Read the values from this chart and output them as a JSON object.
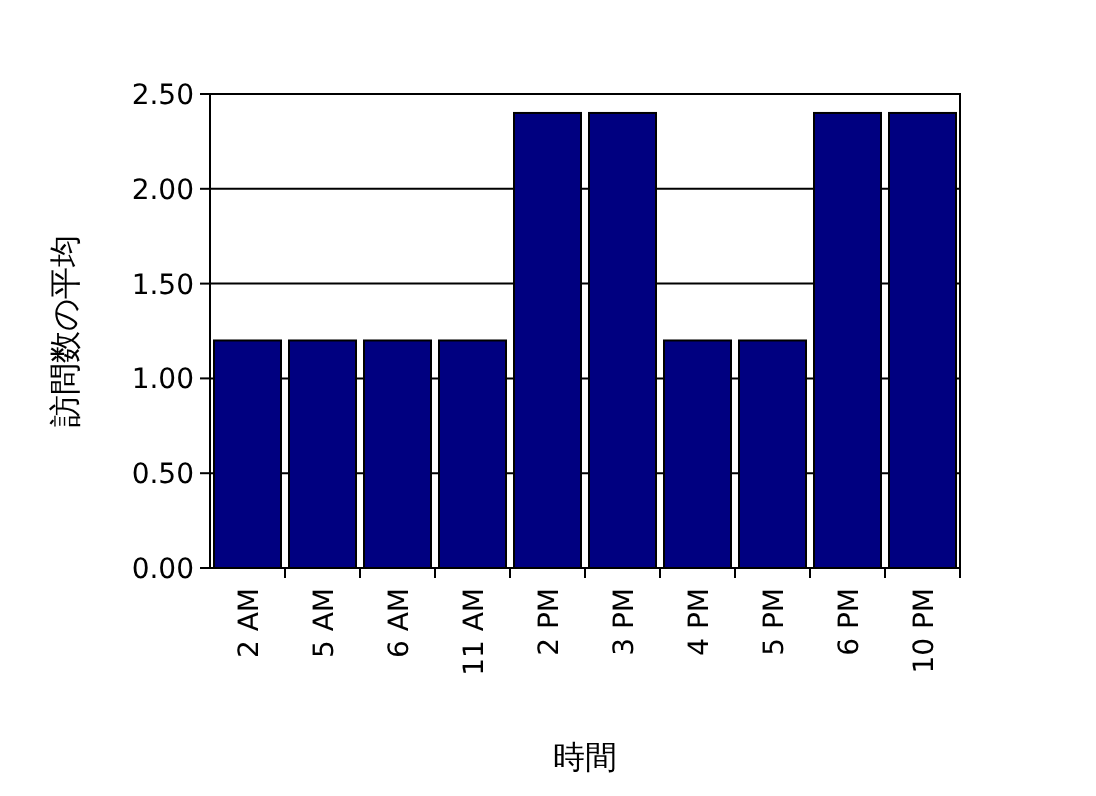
{
  "chart_data": {
    "type": "bar",
    "xlabel": "時間",
    "ylabel": "訪問数の平均",
    "categories": [
      "2 AM",
      "5 AM",
      "6 AM",
      "11 AM",
      "2 PM",
      "3 PM",
      "4 PM",
      "5 PM",
      "6 PM",
      "10 PM"
    ],
    "values": [
      1.2,
      1.2,
      1.2,
      1.2,
      2.4,
      2.4,
      1.2,
      1.2,
      2.4,
      2.4
    ],
    "color": "#000080",
    "ylim": [
      0,
      2.5
    ],
    "yticks": [
      {
        "value": 0,
        "label": "0.00"
      },
      {
        "value": 0.5,
        "label": "0.50"
      },
      {
        "value": 1,
        "label": "1.00"
      },
      {
        "value": 1.5,
        "label": "1.50"
      },
      {
        "value": 2,
        "label": "2.00"
      },
      {
        "value": 2.5,
        "label": "2.50"
      }
    ],
    "grid": "y"
  }
}
